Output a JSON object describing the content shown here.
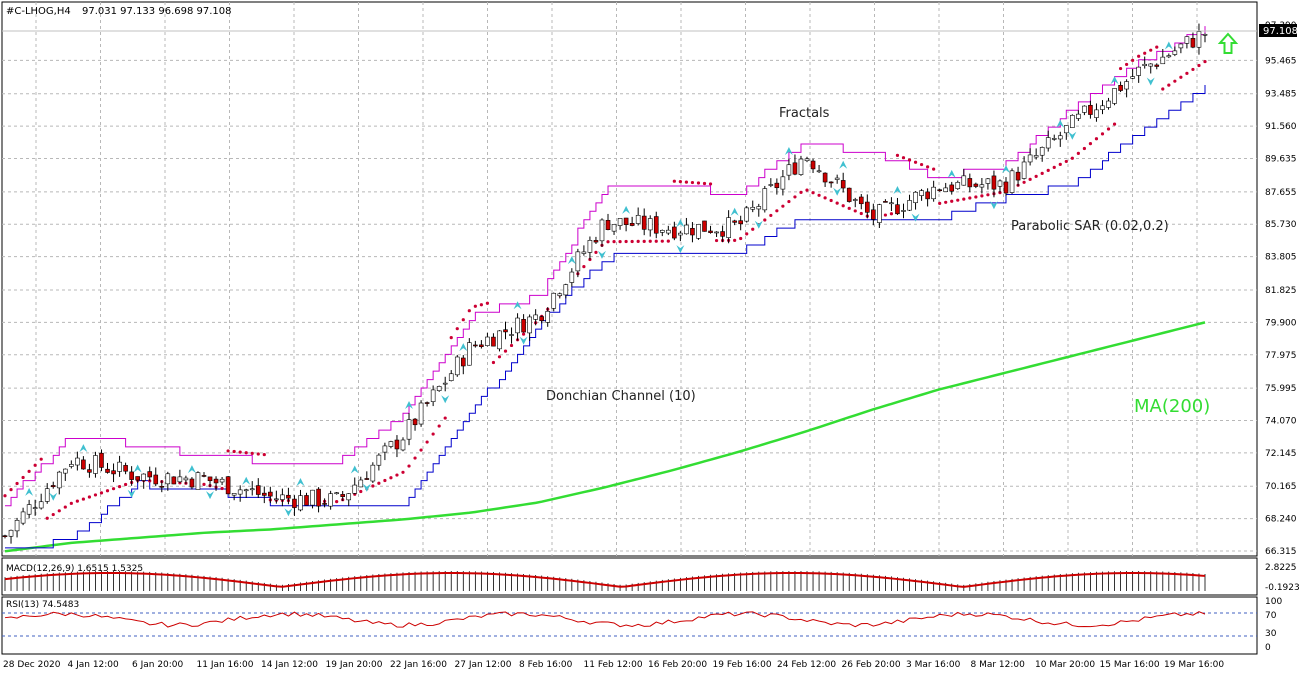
{
  "header": {
    "symbol": "#C-LHOG,H4",
    "ohlc": "97.031 97.133 96.698 97.108"
  },
  "price_axis": {
    "current_price": "97.108",
    "top_label": "97.390",
    "labels": [
      "95.465",
      "93.485",
      "91.560",
      "89.635",
      "87.655",
      "85.730",
      "83.805",
      "81.825",
      "79.900",
      "77.975",
      "75.995",
      "74.070",
      "72.145",
      "70.165",
      "68.240",
      "66.315"
    ]
  },
  "time_axis": {
    "labels": [
      "28 Dec 2020",
      "4 Jan 12:00",
      "6 Jan 20:00",
      "11 Jan 16:00",
      "14 Jan 12:00",
      "19 Jan 20:00",
      "22 Jan 16:00",
      "27 Jan 12:00",
      "8 Feb 16:00",
      "11 Feb 12:00",
      "16 Feb 20:00",
      "19 Feb 16:00",
      "24 Feb 12:00",
      "26 Feb 20:00",
      "3 Mar 16:00",
      "8 Mar 12:00",
      "10 Mar 20:00",
      "15 Mar 16:00",
      "19 Mar 16:00"
    ]
  },
  "annotations": {
    "fractals": "Fractals",
    "parabolic_sar": "Parabolic SAR (0.02,0.2)",
    "donchian": "Donchian Channel (10)",
    "ma": "MA(200)"
  },
  "macd_panel": {
    "title": "MACD(12,26,9) 1.6515 1.5325",
    "axis_top": "2.8225",
    "axis_bottom": "-0.1923"
  },
  "rsi_panel": {
    "title": "RSI(13) 74.5483",
    "levels": [
      "100",
      "70",
      "30",
      "0"
    ]
  },
  "colors": {
    "bull_candle": "#ffffff",
    "bear_candle": "#cc0000",
    "donchian_upper": "#cc00cc",
    "donchian_lower": "#0000cc",
    "sar": "#cc0033",
    "ma200": "#33dd33",
    "fractal": "#40c0d0",
    "macd_hist": "#000000",
    "macd_signal": "#cc0000",
    "rsi_line": "#cc0000",
    "arrow": "#33dd33"
  },
  "chart_data": {
    "type": "candlestick",
    "symbol": "#C-LHOG",
    "timeframe": "H4",
    "x": [
      "28 Dec 2020",
      "4 Jan 12:00",
      "6 Jan 20:00",
      "11 Jan 16:00",
      "14 Jan 12:00",
      "19 Jan 20:00",
      "22 Jan 16:00",
      "27 Jan 12:00",
      "8 Feb 16:00",
      "11 Feb 12:00",
      "16 Feb 20:00",
      "19 Feb 16:00",
      "24 Feb 12:00",
      "26 Feb 20:00",
      "3 Mar 16:00",
      "8 Mar 12:00",
      "10 Mar 20:00",
      "15 Mar 16:00",
      "19 Mar 16:00"
    ],
    "close_approx": [
      67.2,
      71.8,
      70.8,
      70.6,
      69.5,
      69.3,
      73.3,
      78.5,
      80.3,
      85.9,
      85.5,
      85.6,
      89.9,
      86.1,
      88.0,
      88.1,
      91.6,
      94.8,
      97.1
    ],
    "ylim": [
      66.315,
      97.39
    ],
    "last": {
      "open": 97.031,
      "high": 97.133,
      "low": 96.698,
      "close": 97.108
    },
    "indicators": {
      "ma200_approx": [
        66.3,
        66.8,
        67.1,
        67.4,
        67.6,
        67.9,
        68.2,
        68.6,
        69.2,
        70.1,
        71.1,
        72.2,
        73.4,
        74.7,
        75.9,
        76.9,
        77.9,
        78.9,
        79.9
      ],
      "donchian_upper_approx": [
        69.2,
        73.2,
        72.6,
        72.0,
        71.6,
        71.6,
        74.5,
        80.4,
        81.4,
        87.9,
        87.9,
        87.6,
        90.5,
        90.0,
        88.5,
        89.2,
        92.6,
        95.3,
        97.3
      ],
      "donchian_lower_approx": [
        66.3,
        67.0,
        70.3,
        70.0,
        69.2,
        69.2,
        69.2,
        74.5,
        79.8,
        83.7,
        84.1,
        84.1,
        86.1,
        86.1,
        86.1,
        87.3,
        88.0,
        91.2,
        94.0
      ],
      "macd": 1.6515,
      "macd_signal": 1.5325,
      "rsi": 74.5483
    }
  }
}
